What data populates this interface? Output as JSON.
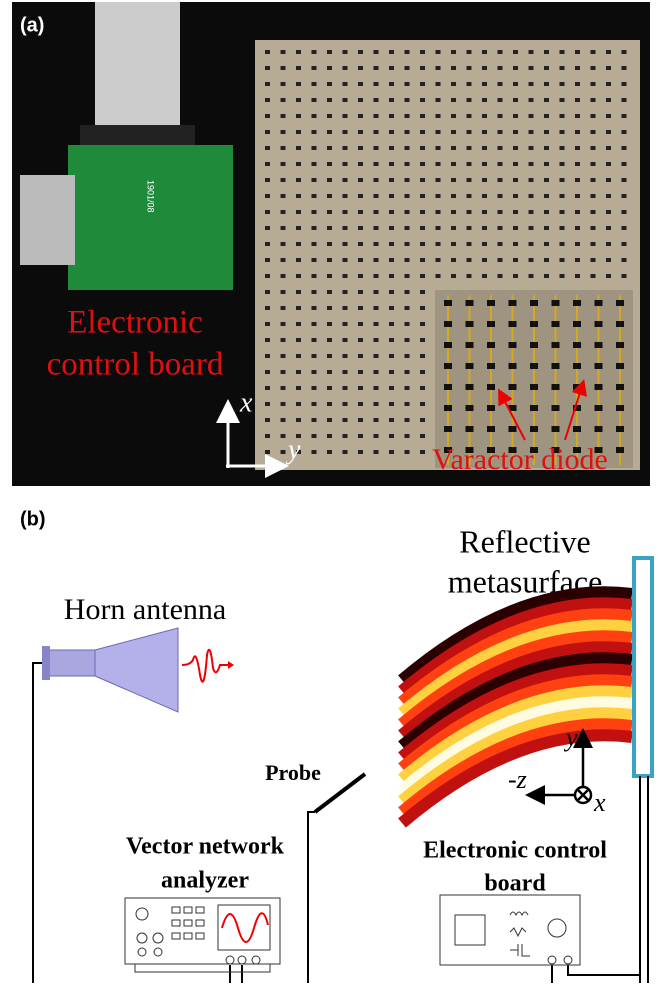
{
  "panel_a": {
    "label": "(a)",
    "board_label": [
      "Electronic",
      "control board"
    ],
    "board_print": "1901/08",
    "axis_x": "x",
    "axis_y": "y",
    "diode_label": "Varactor diode"
  },
  "panel_b": {
    "label": "(b)",
    "metasurface_label": [
      "Reflective",
      "metasurface"
    ],
    "horn_label": "Horn antenna",
    "probe_label": "Probe",
    "vna_label": [
      "Vector network",
      "analyzer"
    ],
    "board_label": [
      "Electronic control",
      "board"
    ],
    "axis_y": "y",
    "axis_z": "-z",
    "axis_x": "x"
  }
}
